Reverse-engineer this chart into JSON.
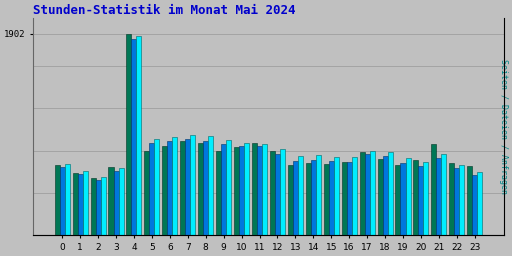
{
  "title": "Stunden-Statistik im Monat Mai 2024",
  "title_color": "#0000cc",
  "ylabel_right": "Seiten / Dateien / Anfragen",
  "ylabel_right_color": "#008888",
  "background_color": "#c0c0c0",
  "plot_bg_color": "#c0c0c0",
  "xticks": [
    0,
    1,
    2,
    3,
    4,
    5,
    6,
    7,
    8,
    9,
    10,
    11,
    12,
    13,
    14,
    15,
    16,
    17,
    18,
    19,
    20,
    21,
    22,
    23
  ],
  "bar_width": 0.28,
  "colors": {
    "anfragen": "#007755",
    "seiten": "#0077dd",
    "dateien": "#00eeff"
  },
  "anfragen": [
    660,
    590,
    545,
    640,
    1902,
    800,
    840,
    890,
    870,
    800,
    830,
    870,
    800,
    660,
    680,
    670,
    690,
    790,
    720,
    660,
    710,
    860,
    680,
    650
  ],
  "seiten": [
    640,
    575,
    525,
    610,
    1850,
    870,
    895,
    905,
    895,
    865,
    840,
    840,
    770,
    705,
    715,
    702,
    695,
    765,
    745,
    685,
    650,
    730,
    635,
    565
  ],
  "dateien": [
    670,
    605,
    550,
    635,
    1880,
    905,
    930,
    945,
    935,
    900,
    875,
    865,
    815,
    745,
    755,
    740,
    738,
    800,
    785,
    727,
    695,
    770,
    665,
    598
  ],
  "ylim": [
    0,
    2050
  ],
  "ytick_val": 1902,
  "figsize": [
    5.12,
    2.56
  ],
  "dpi": 100,
  "title_fontsize": 9,
  "tick_fontsize": 6.5
}
